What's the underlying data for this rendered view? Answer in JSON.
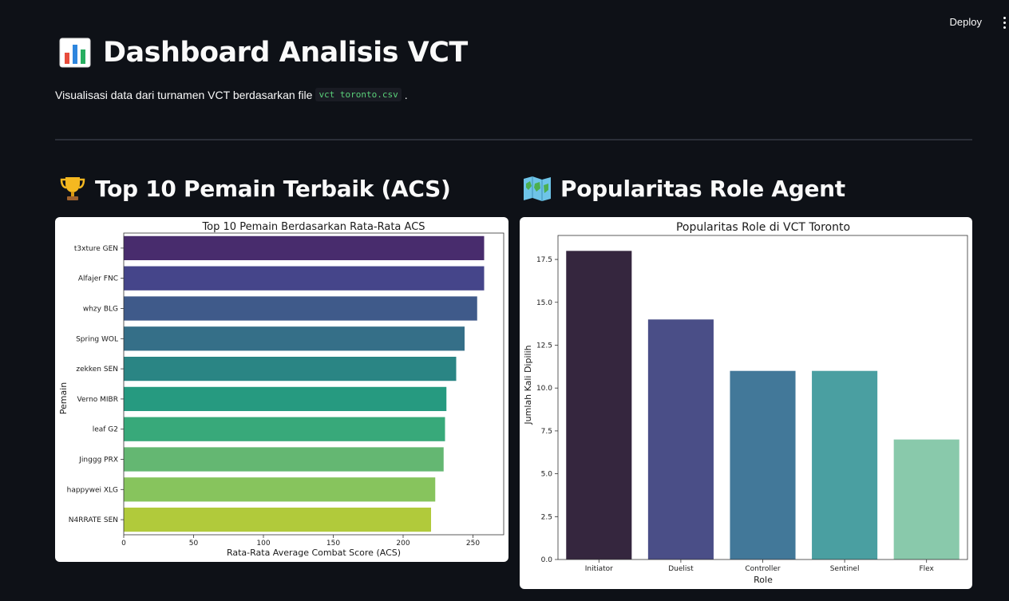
{
  "toolbar": {
    "deploy_label": "Deploy"
  },
  "header": {
    "title": "Dashboard Analisis VCT",
    "subtitle_prefix": "Visualisasi data dari turnamen VCT berdasarkan file",
    "filename": "vct toronto.csv",
    "subtitle_suffix": "."
  },
  "sections": {
    "left_heading": "Top 10 Pemain Terbaik (ACS)",
    "right_heading": "Popularitas Role Agent"
  },
  "chart_data": [
    {
      "type": "bar",
      "orientation": "horizontal",
      "title": "Top 10 Pemain Berdasarkan Rata-Rata ACS",
      "xlabel": "Rata-Rata Average Combat Score (ACS)",
      "ylabel": "Pemain",
      "categories": [
        "t3xture GEN",
        "Alfajer FNC",
        "whzy BLG",
        "Spring WOL",
        "zekken SEN",
        "Verno MIBR",
        "leaf G2",
        "Jinggg PRX",
        "happywei XLG",
        "N4RRATE SEN"
      ],
      "values": [
        258,
        258,
        253,
        244,
        238,
        231,
        230,
        229,
        223,
        220
      ],
      "colors": [
        "#482c6d",
        "#45458a",
        "#3f5a8a",
        "#356f88",
        "#2a8584",
        "#269a80",
        "#38a97a",
        "#64b772",
        "#87c45d",
        "#b1ca3b"
      ],
      "xlim": [
        0,
        272
      ],
      "xticks": [
        0,
        50,
        100,
        150,
        200,
        250
      ],
      "grid": false
    },
    {
      "type": "bar",
      "title": "Popularitas Role di VCT Toronto",
      "xlabel": "Role",
      "ylabel": "Jumlah Kali Dipilih",
      "categories": [
        "Initiator",
        "Duelist",
        "Controller",
        "Sentinel",
        "Flex"
      ],
      "values": [
        18,
        14,
        11,
        11,
        7
      ],
      "colors": [
        "#35263e",
        "#4a4e87",
        "#427899",
        "#4a9fa1",
        "#89c9ab"
      ],
      "ylim": [
        0,
        18.9
      ],
      "yticks": [
        "0.0",
        "2.5",
        "5.0",
        "7.5",
        "10.0",
        "12.5",
        "15.0",
        "17.5"
      ],
      "grid": false
    }
  ]
}
